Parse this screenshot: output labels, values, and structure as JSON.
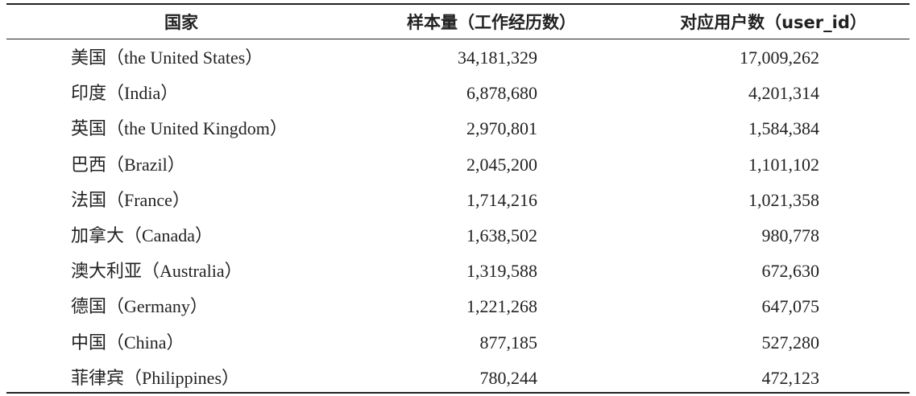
{
  "table": {
    "header": [
      "国家",
      "样本量（工作经历数）",
      "对应用户数（user_id）"
    ],
    "rows": [
      [
        "美国（the United States）",
        "34,181,329",
        "17,009,262"
      ],
      [
        "印度（India）",
        "6,878,680",
        "4,201,314"
      ],
      [
        "英国（the United Kingdom）",
        "2,970,801",
        "1,584,384"
      ],
      [
        "巴西（Brazil）",
        "2,045,200",
        "1,101,102"
      ],
      [
        "法国（France）",
        "1,714,216",
        "1,021,358"
      ],
      [
        "加拿大（Canada）",
        "1,638,502",
        "980,778"
      ],
      [
        "澳大利亚（Australia）",
        "1,319,588",
        "672,630"
      ],
      [
        "德国（Germany）",
        "1,221,268",
        "647,075"
      ],
      [
        "中国（China）",
        "877,185",
        "527,280"
      ],
      [
        "菲律宾（Philippines）",
        "780,244",
        "472,123"
      ]
    ]
  }
}
